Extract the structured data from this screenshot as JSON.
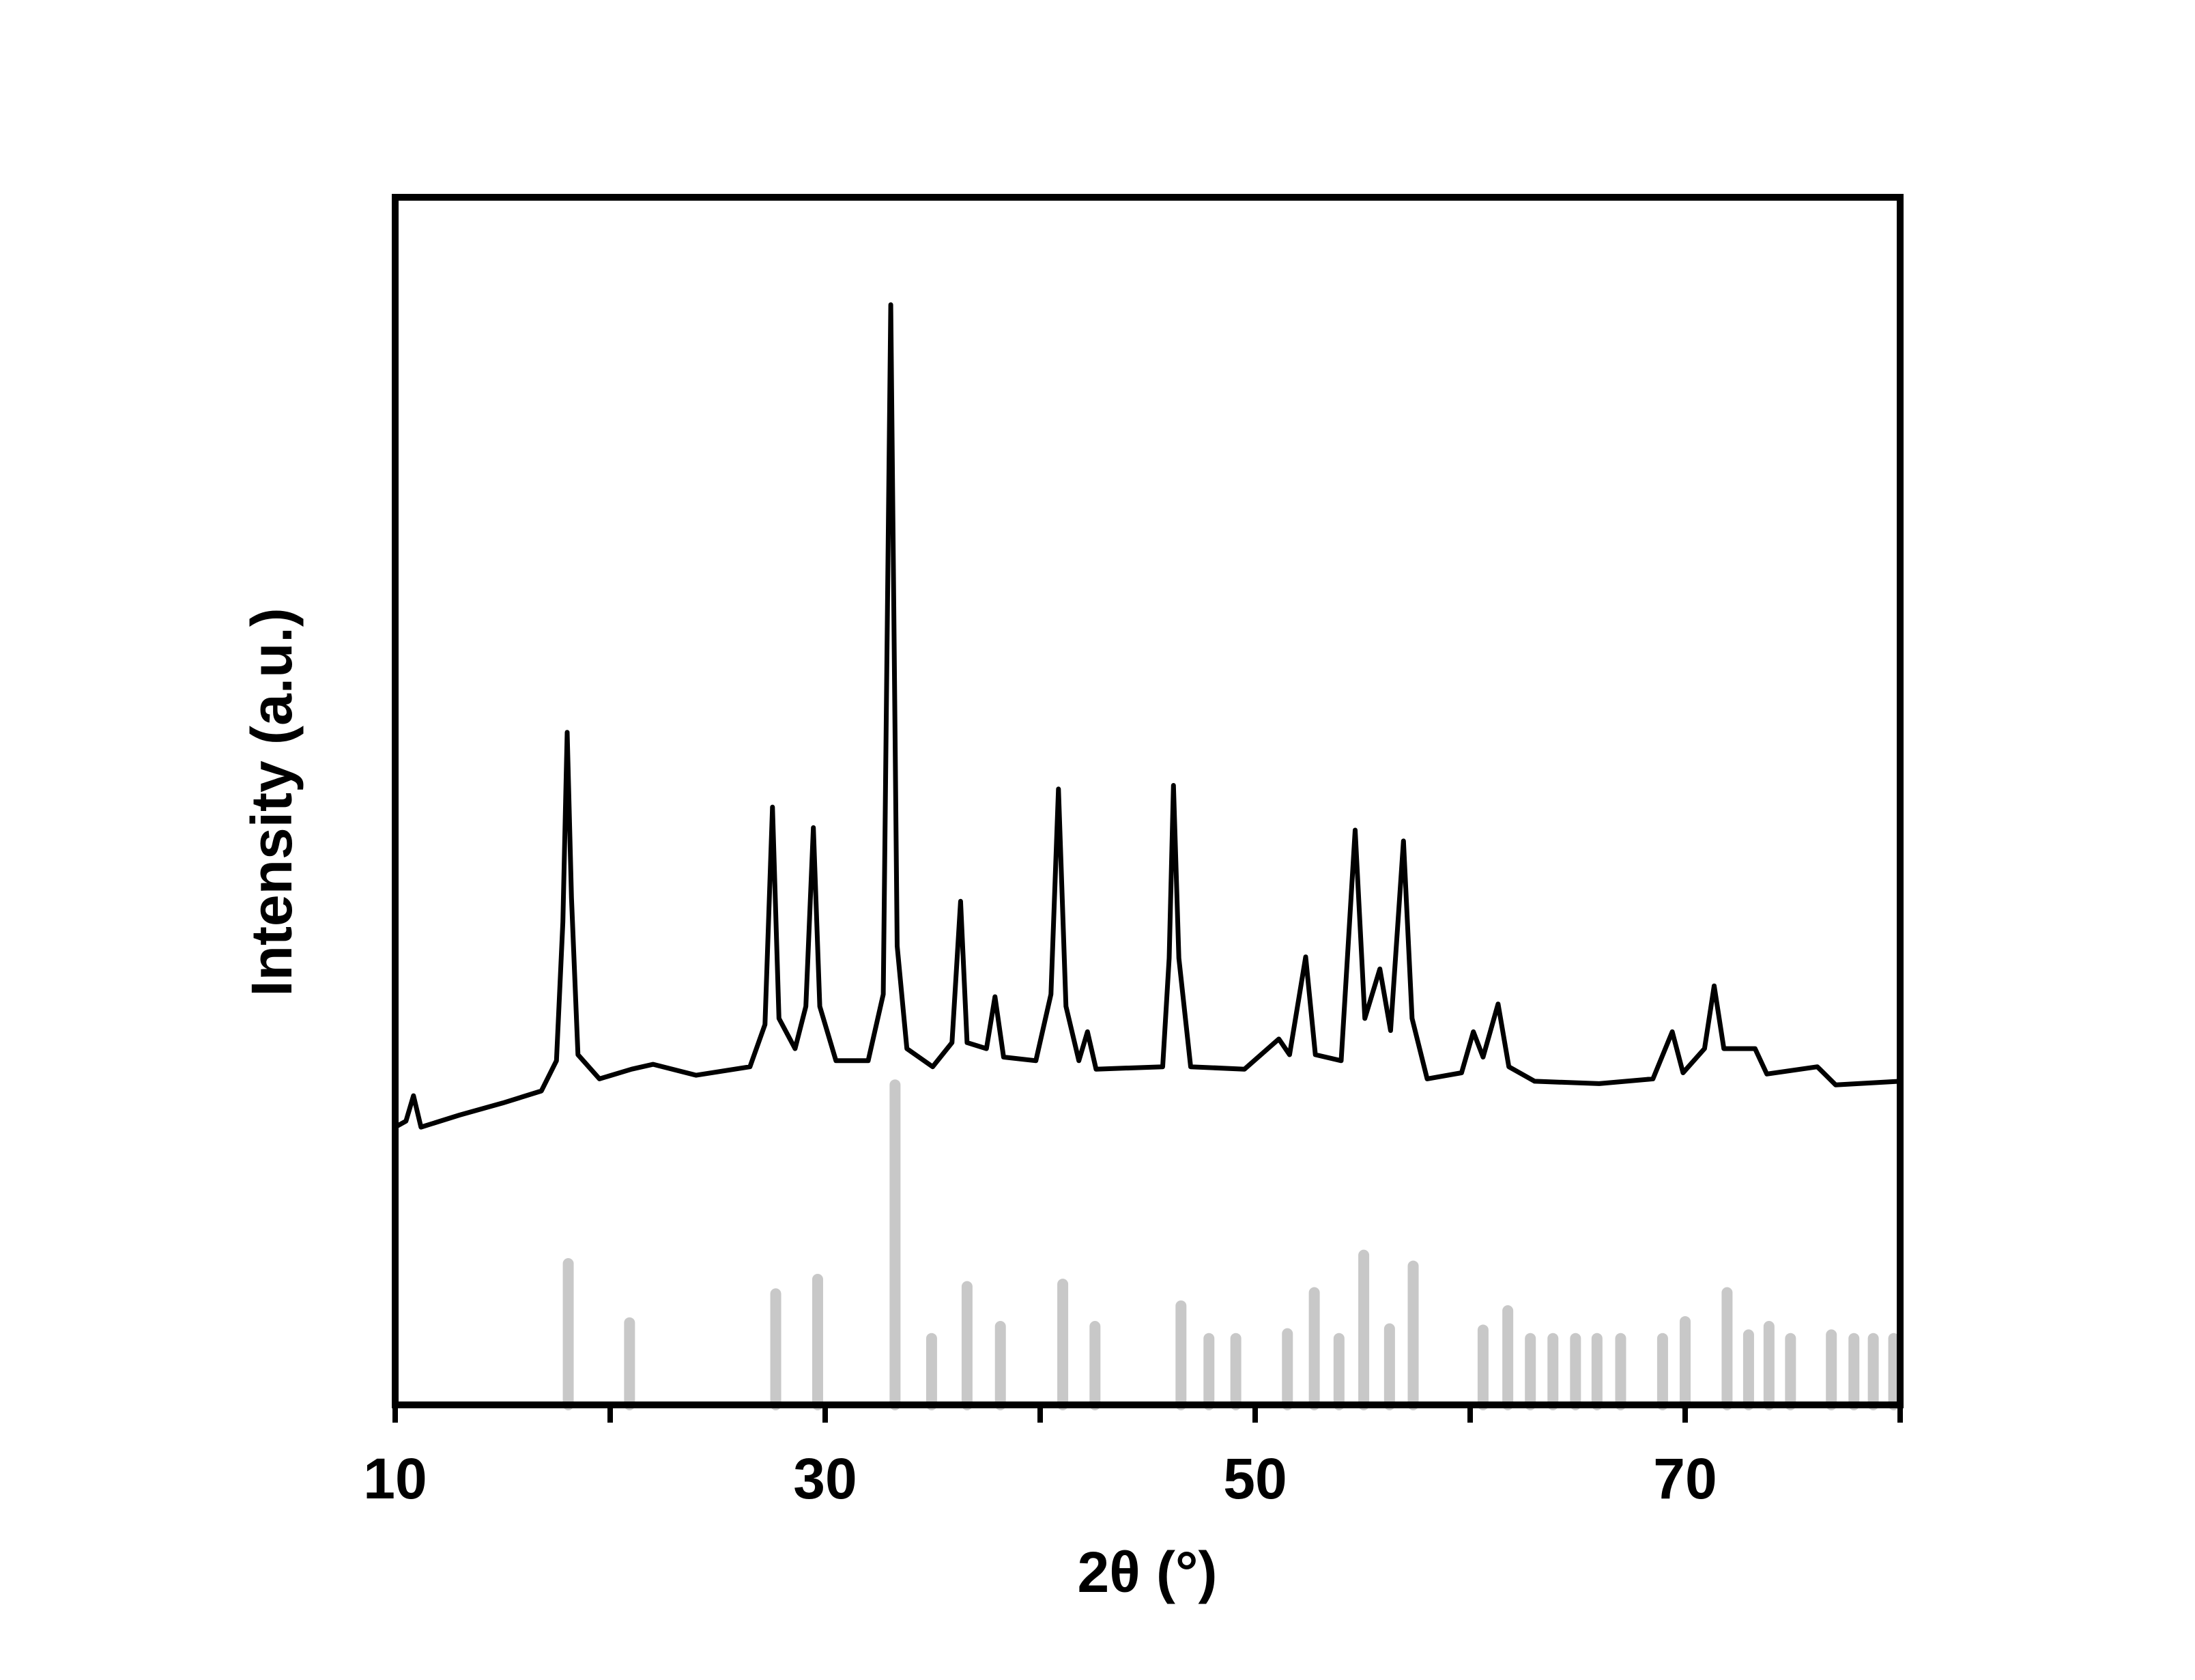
{
  "chart_data": {
    "type": "line",
    "x_label": "2θ (°)",
    "y_label": "Intensity (a.u.)",
    "xlim": [
      10,
      80
    ],
    "ylim": [
      0,
      100
    ],
    "xticks": [
      10,
      30,
      50,
      70
    ],
    "xminorticks": [
      20,
      40,
      60,
      80
    ],
    "series": [
      {
        "style": "line",
        "color": "#000000",
        "x": [
          10.0,
          10.5,
          10.85,
          11.2,
          13,
          15,
          16.8,
          17.5,
          17.8,
          18.0,
          18.2,
          18.5,
          19.5,
          21.0,
          22,
          24,
          26.5,
          27.2,
          27.55,
          27.85,
          28.6,
          29.1,
          29.45,
          29.75,
          30.5,
          32.0,
          32.7,
          33.05,
          33.35,
          33.8,
          35.0,
          35.9,
          36.3,
          36.6,
          37.5,
          37.9,
          38.3,
          39.8,
          40.5,
          40.85,
          41.2,
          41.8,
          42.2,
          42.6,
          45.7,
          46.0,
          46.2,
          46.45,
          47.0,
          49.5,
          51.1,
          51.6,
          52.35,
          52.8,
          54.0,
          54.65,
          55.1,
          55.8,
          56.3,
          56.9,
          57.3,
          58.0,
          59.6,
          60.15,
          60.6,
          61.3,
          61.8,
          63,
          66,
          68.5,
          69.4,
          69.9,
          70.9,
          71.35,
          71.8,
          73.25,
          73.8,
          76.15,
          77,
          80
        ],
        "values": [
          23.0,
          23.5,
          25.6,
          23.0,
          24.0,
          25.0,
          26.0,
          28.5,
          40,
          55.7,
          42,
          29,
          27.0,
          27.8,
          28.2,
          27.3,
          28.0,
          31.5,
          49.5,
          32,
          29.5,
          33,
          47.8,
          33,
          28.5,
          28.5,
          34,
          91.1,
          38,
          29.5,
          28.0,
          30,
          41.7,
          30,
          29.5,
          33.8,
          28.8,
          28.5,
          34,
          51.0,
          33,
          28.5,
          30.9,
          27.8,
          28.0,
          37,
          51.3,
          37,
          28.0,
          27.8,
          30.3,
          29,
          37.1,
          29,
          28.5,
          47.6,
          32,
          36.1,
          31,
          46.7,
          32,
          27.0,
          27.5,
          30.9,
          28.8,
          33.2,
          28.0,
          26.8,
          26.6,
          27.0,
          30.9,
          27.5,
          29.5,
          34.7,
          29.5,
          29.5,
          27.4,
          28.0,
          26.5,
          26.8
        ]
      },
      {
        "style": "stick",
        "color": "#c8c8c8",
        "x": [
          18.05,
          20.9,
          27.7,
          29.65,
          33.25,
          34.95,
          36.6,
          38.15,
          41.05,
          42.55,
          46.55,
          47.85,
          49.1,
          51.5,
          52.75,
          53.9,
          55.05,
          56.25,
          57.35,
          60.6,
          61.75,
          62.8,
          63.85,
          64.9,
          65.9,
          67.0,
          68.95,
          70.0,
          71.95,
          72.95,
          73.9,
          74.9,
          76.8,
          77.85,
          78.75,
          79.7
        ],
        "values": [
          11.7,
          6.8,
          9.2,
          10.4,
          26.5,
          5.5,
          9.8,
          6.5,
          10.0,
          6.5,
          8.2,
          5.5,
          5.5,
          5.9,
          9.3,
          5.5,
          12.4,
          6.3,
          11.5,
          6.2,
          7.8,
          5.5,
          5.5,
          5.5,
          5.5,
          5.5,
          5.5,
          6.9,
          9.3,
          5.8,
          6.5,
          5.5,
          5.8,
          5.5,
          5.5,
          5.5
        ]
      }
    ]
  }
}
